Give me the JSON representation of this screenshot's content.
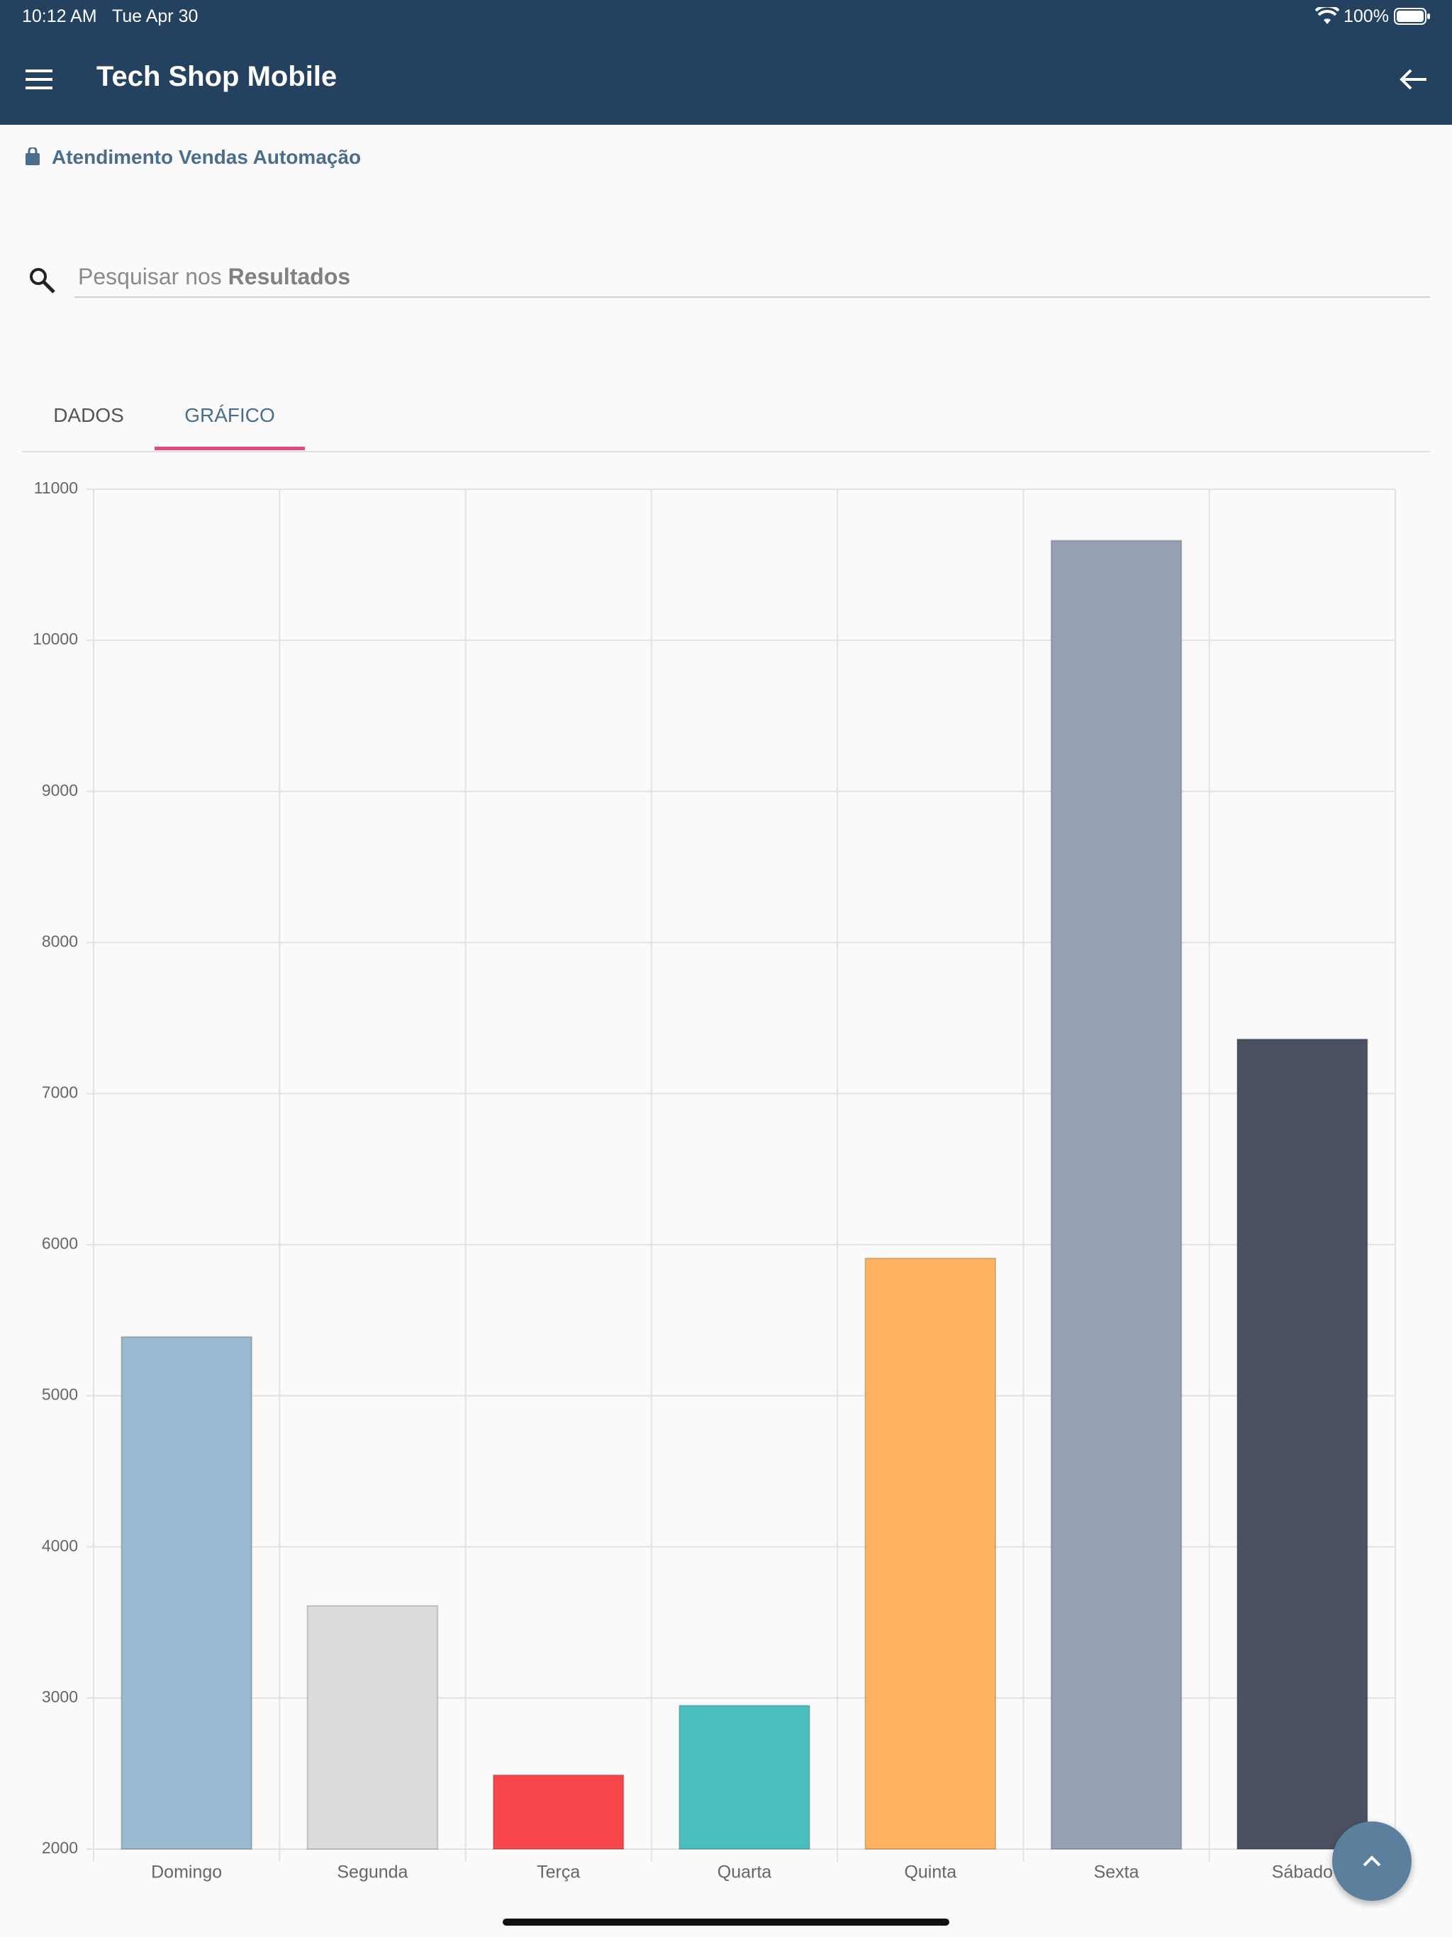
{
  "status_bar": {
    "time": "10:12 AM",
    "date": "Tue Apr 30",
    "battery": "100%"
  },
  "header": {
    "title": "Tech Shop Mobile"
  },
  "subtitle": "Atendimento Vendas Automação",
  "search": {
    "placeholder": "Pesquisar nos",
    "placeholder_bold": "Resultados"
  },
  "tabs": [
    {
      "label": "DADOS",
      "active": false
    },
    {
      "label": "GRÁFICO",
      "active": true
    }
  ],
  "chart_data": {
    "type": "bar",
    "categories": [
      "Domingo",
      "Segunda",
      "Terça",
      "Quarta",
      "Quinta",
      "Sexta",
      "Sábado"
    ],
    "values": [
      5390,
      3610,
      2490,
      2950,
      5910,
      10660,
      7360
    ],
    "colors": [
      "#98b9cf",
      "#dcdcdc",
      "#f7474b",
      "#48bfbe",
      "#ffb35f",
      "#95a0b3",
      "#4b5160"
    ],
    "ylim": [
      2000,
      11000
    ],
    "yticks": [
      2000,
      3000,
      4000,
      5000,
      6000,
      7000,
      8000,
      9000,
      10000,
      11000
    ],
    "grid": true
  }
}
